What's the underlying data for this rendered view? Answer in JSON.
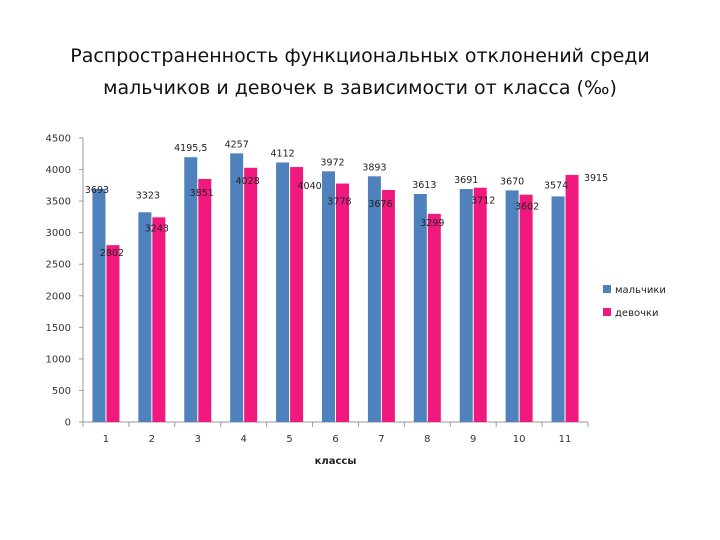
{
  "chart_data": {
    "type": "bar",
    "title": "Распространенность функциональных отклонений среди мальчиков и девочек в зависимости от класса (‰)",
    "xlabel": "классы",
    "ylabel": "",
    "categories": [
      "1",
      "2",
      "3",
      "4",
      "5",
      "6",
      "7",
      "8",
      "9",
      "10",
      "11"
    ],
    "ylim": [
      0,
      4500
    ],
    "yticks": [
      0,
      500,
      1000,
      1500,
      2000,
      2500,
      3000,
      3500,
      4000,
      4500
    ],
    "grid": false,
    "legend_position": "right",
    "series": [
      {
        "name": "мальчики",
        "color": "#4F81BD",
        "values": [
          3693,
          3323,
          4195.5,
          4257,
          4112,
          3972,
          3893,
          3613,
          3691,
          3670,
          3574
        ],
        "labels": [
          "3693",
          "3323",
          "4195,5",
          "4257",
          "4112",
          "3972",
          "3893",
          "3613",
          "3691",
          "3670",
          "3574"
        ]
      },
      {
        "name": "девочки",
        "color": "#F0197D",
        "values": [
          2802,
          3243,
          3851,
          4028,
          4040,
          3778,
          3676,
          3299,
          3712,
          3602,
          3915
        ],
        "labels": [
          "2802",
          "3243",
          "3851",
          "4028",
          "4040",
          "3778",
          "3676",
          "3299",
          "3712",
          "3602",
          "3915"
        ]
      }
    ]
  }
}
